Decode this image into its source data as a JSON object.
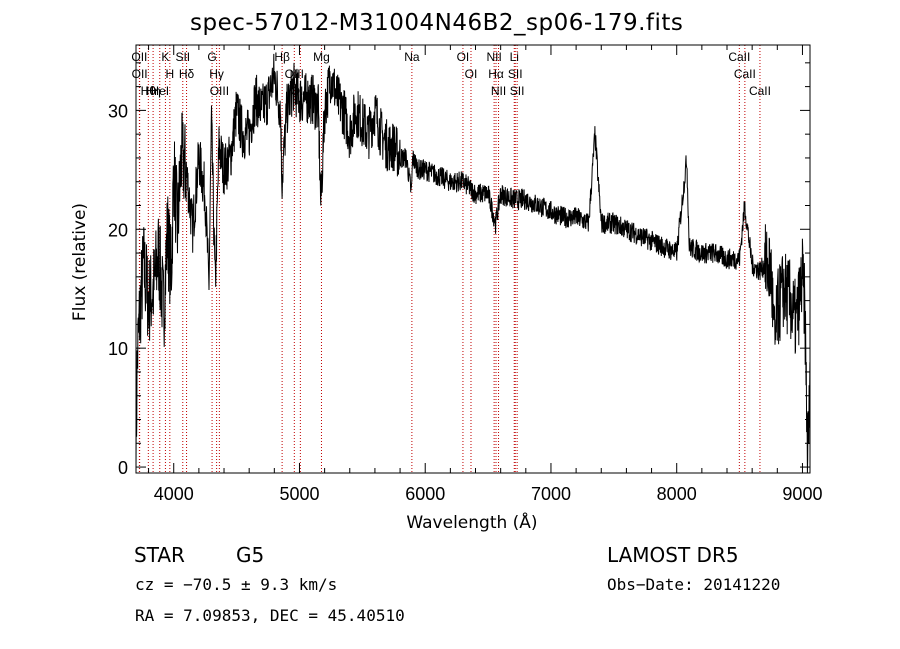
{
  "title": "spec-57012-M31004N46B2_sp06-179.fits",
  "info": {
    "object_class": "STAR",
    "subclass": "G5",
    "survey": "LAMOST  DR5",
    "cz": "cz = −70.5 ± 9.3 km/s",
    "obs_date": "Obs−Date: 20141220",
    "coords": "RA =    7.09853, DEC =  45.40510"
  },
  "chart_data": {
    "type": "line",
    "xlabel": "Wavelength (Å)",
    "ylabel": "Flux (relative)",
    "xlim": [
      3700,
      9060
    ],
    "ylim": [
      -0.5,
      35.5
    ],
    "xticks": [
      4000,
      5000,
      6000,
      7000,
      8000,
      9000
    ],
    "yticks": [
      0,
      10,
      20,
      30
    ],
    "grid": false,
    "colors": {
      "spectrum": "#000000",
      "lines": "#c00000"
    },
    "spectrum_anchor_points": {
      "x": [
        3700,
        3710,
        3730,
        3760,
        3800,
        3840,
        3880,
        3920,
        3950,
        3980,
        4000,
        4030,
        4060,
        4100,
        4150,
        4200,
        4250,
        4280,
        4300,
        4330,
        4360,
        4400,
        4450,
        4500,
        4550,
        4600,
        4650,
        4700,
        4750,
        4800,
        4850,
        4860,
        4900,
        4950,
        5000,
        5050,
        5100,
        5150,
        5170,
        5200,
        5250,
        5300,
        5350,
        5400,
        5450,
        5500,
        5550,
        5600,
        5650,
        5700,
        5750,
        5800,
        5850,
        5890,
        5900,
        5950,
        6000,
        6100,
        6200,
        6300,
        6400,
        6500,
        6560,
        6600,
        6700,
        6800,
        6900,
        7000,
        7100,
        7200,
        7300,
        7350,
        7400,
        7500,
        7600,
        7700,
        7800,
        7900,
        8000,
        8080,
        8100,
        8200,
        8300,
        8400,
        8500,
        8540,
        8600,
        8660,
        8700,
        8750,
        8780,
        8800,
        8850,
        8900,
        8950,
        9000,
        9020,
        9040,
        9060
      ],
      "y": [
        0.5,
        9,
        13,
        17,
        14,
        15,
        18,
        13,
        20,
        16,
        25,
        20,
        26,
        25,
        20,
        26,
        23,
        15,
        29,
        15,
        27,
        25,
        26,
        30,
        28,
        28,
        31,
        30,
        31,
        33,
        30,
        24,
        30,
        32,
        31,
        31,
        31,
        30,
        22,
        30,
        33,
        31,
        30,
        28,
        30,
        29,
        28,
        30,
        28,
        27,
        27,
        26,
        26,
        23,
        26,
        25,
        25,
        24.5,
        24,
        24,
        23,
        23,
        20.5,
        23,
        22.5,
        22.5,
        22,
        21.5,
        21,
        21,
        20.5,
        28,
        20.5,
        20.5,
        20,
        19.5,
        19,
        18.5,
        18,
        26,
        18.5,
        18,
        18,
        17.5,
        17.5,
        22,
        17,
        16.5,
        17,
        16.5,
        10,
        13,
        15,
        14,
        12,
        16,
        13,
        1,
        6
      ]
    },
    "spectral_lines": [
      {
        "label": "Hθ",
        "wavelength": 3798
      },
      {
        "label": "OII",
        "wavelength": 3727
      },
      {
        "label": "OII",
        "wavelength": 3729
      },
      {
        "label": "Hη",
        "wavelength": 3836
      },
      {
        "label": "K",
        "wavelength": 3934
      },
      {
        "label": "HeI",
        "wavelength": 3889
      },
      {
        "label": "H",
        "wavelength": 3969
      },
      {
        "label": "SII",
        "wavelength": 4072
      },
      {
        "label": "Hδ",
        "wavelength": 4102
      },
      {
        "label": "OIII",
        "wavelength": 4363
      },
      {
        "label": "Hγ",
        "wavelength": 4341
      },
      {
        "label": "G",
        "wavelength": 4305
      },
      {
        "label": "Hβ",
        "wavelength": 4862
      },
      {
        "label": "OIII",
        "wavelength": 5007
      },
      {
        "label": "OIII",
        "wavelength": 4959
      },
      {
        "label": "Mg",
        "wavelength": 5175
      },
      {
        "label": "Na",
        "wavelength": 5894
      },
      {
        "label": "OI",
        "wavelength": 6300
      },
      {
        "label": "OI",
        "wavelength": 6364
      },
      {
        "label": "Hα",
        "wavelength": 6563
      },
      {
        "label": "NII",
        "wavelength": 6548
      },
      {
        "label": "NII",
        "wavelength": 6583
      },
      {
        "label": "SII",
        "wavelength": 6716
      },
      {
        "label": "Li",
        "wavelength": 6708
      },
      {
        "label": "SII",
        "wavelength": 6731
      },
      {
        "label": "CaII",
        "wavelength": 8498
      },
      {
        "label": "CaII",
        "wavelength": 8542
      },
      {
        "label": "CaII",
        "wavelength": 8662
      }
    ]
  }
}
